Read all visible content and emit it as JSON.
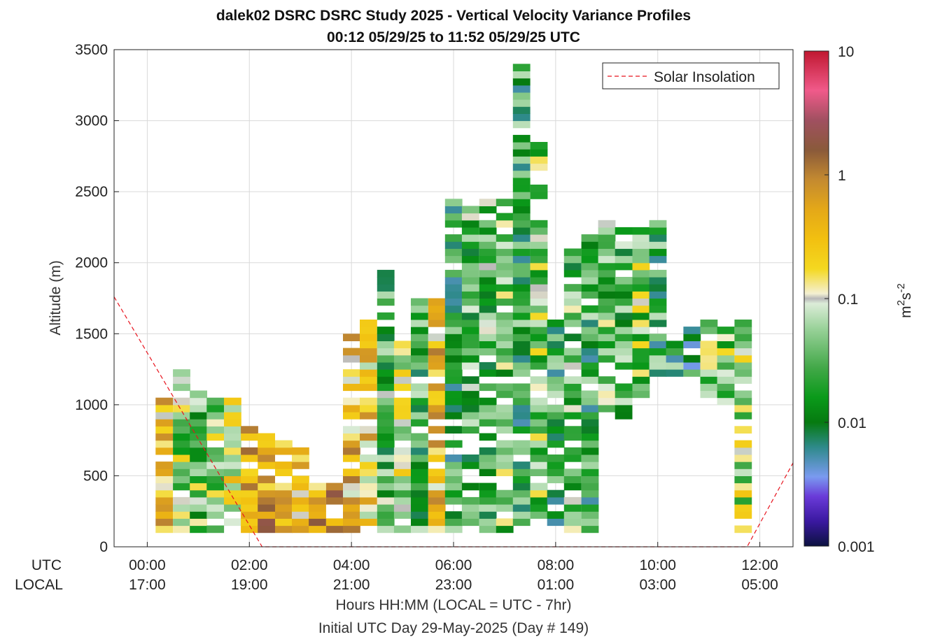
{
  "chart_data": {
    "type": "heatmap",
    "title": "dalek02 DSRC DSRC Study 2025 - Vertical Velocity Variance Profiles",
    "subtitle": "00:12 05/29/25 to 11:52 05/29/25  UTC",
    "ylabel": "Altitude (m)",
    "xlabel": "Hours HH:MM  (LOCAL = UTC - 7hr)",
    "xlabel2": "Initial UTC Day 29-May-2025 (Day # 149)",
    "row_label_utc": "UTC",
    "row_label_local": "LOCAL",
    "x_range_hours": [
      -0.65,
      12.65
    ],
    "ylim": [
      0,
      3500
    ],
    "x_ticks": [
      {
        "hour": 0,
        "utc": "00:00",
        "local": "17:00"
      },
      {
        "hour": 2,
        "utc": "02:00",
        "local": "19:00"
      },
      {
        "hour": 4,
        "utc": "04:00",
        "local": "21:00"
      },
      {
        "hour": 6,
        "utc": "06:00",
        "local": "23:00"
      },
      {
        "hour": 8,
        "utc": "08:00",
        "local": "01:00"
      },
      {
        "hour": 10,
        "utc": "10:00",
        "local": "03:00"
      },
      {
        "hour": 12,
        "utc": "12:00",
        "local": "05:00"
      }
    ],
    "y_ticks": [
      {
        "value": 0,
        "label": "0"
      },
      {
        "value": 500,
        "label": "500"
      },
      {
        "value": 1000,
        "label": "1000"
      },
      {
        "value": 1500,
        "label": "1500"
      },
      {
        "value": 2000,
        "label": "2000"
      },
      {
        "value": 2500,
        "label": "2500"
      },
      {
        "value": 3000,
        "label": "3000"
      },
      {
        "value": 3500,
        "label": "3500"
      }
    ],
    "grid": true,
    "legend": {
      "label": "Solar Insolation",
      "position": "top-right",
      "color": "#e8141e",
      "style": "dashed"
    },
    "colorbar": {
      "scale": "log",
      "range": [
        0.001,
        10
      ],
      "ticks": [
        {
          "value": 10,
          "label": "10"
        },
        {
          "value": 1,
          "label": "1"
        },
        {
          "value": 0.1,
          "label": "0.1"
        },
        {
          "value": 0.01,
          "label": "0.01"
        },
        {
          "value": 0.001,
          "label": "0.001"
        }
      ],
      "unit_base": "m",
      "unit_exp1": "2",
      "unit_mid": "s",
      "unit_exp2": "-2",
      "stops": [
        [
          0.0,
          "#0c1240"
        ],
        [
          0.05,
          "#3a18a0"
        ],
        [
          0.1,
          "#6a3ad8"
        ],
        [
          0.14,
          "#7a9af0"
        ],
        [
          0.2,
          "#2e8a8a"
        ],
        [
          0.25,
          "#067a10"
        ],
        [
          0.3,
          "#0a9a1a"
        ],
        [
          0.36,
          "#42a848"
        ],
        [
          0.44,
          "#9ad29a"
        ],
        [
          0.49,
          "#dcecd8"
        ],
        [
          0.5,
          "#b8b8b8"
        ],
        [
          0.51,
          "#f4f0d2"
        ],
        [
          0.56,
          "#f4d820"
        ],
        [
          0.62,
          "#f2c010"
        ],
        [
          0.68,
          "#e4a818"
        ],
        [
          0.74,
          "#c48a30"
        ],
        [
          0.8,
          "#8a5a3a"
        ],
        [
          0.86,
          "#a05060"
        ],
        [
          0.92,
          "#f05a8a"
        ],
        [
          1.0,
          "#c01830"
        ]
      ]
    },
    "solar_insolation_line": [
      {
        "hour": -0.65,
        "altitude": 1760
      },
      {
        "hour": 2.25,
        "altitude": 0
      },
      {
        "hour": 11.75,
        "altitude": 0
      },
      {
        "hour": 12.65,
        "altitude": 590
      }
    ],
    "bin_width_hours": 0.3333,
    "bin_height_m": 50,
    "cells": [
      {
        "hour": 0.33,
        "altitude_range": [
          100,
          1050
        ],
        "variance": 0.25
      },
      {
        "hour": 0.67,
        "altitude_range": [
          100,
          1250
        ],
        "variance": 0.06
      },
      {
        "hour": 1.0,
        "altitude_range": [
          100,
          1100
        ],
        "variance": 0.04
      },
      {
        "hour": 1.33,
        "altitude_range": [
          100,
          1050
        ],
        "variance": 0.05
      },
      {
        "hour": 1.67,
        "altitude_range": [
          100,
          1100
        ],
        "variance": 0.12
      },
      {
        "hour": 2.0,
        "altitude_range": [
          100,
          850
        ],
        "variance": 0.35
      },
      {
        "hour": 2.33,
        "altitude_range": [
          100,
          800
        ],
        "variance": 0.5
      },
      {
        "hour": 2.67,
        "altitude_range": [
          100,
          800
        ],
        "variance": 0.35
      },
      {
        "hour": 3.0,
        "altitude_range": [
          100,
          700
        ],
        "variance": 0.3
      },
      {
        "hour": 3.33,
        "altitude_range": [
          100,
          450
        ],
        "variance": 0.45
      },
      {
        "hour": 3.67,
        "altitude_range": [
          100,
          450
        ],
        "variance": 0.5
      },
      {
        "hour": 4.0,
        "altitude_range": [
          100,
          1500
        ],
        "variance": 0.3
      },
      {
        "hour": 4.33,
        "altitude_range": [
          100,
          1600
        ],
        "variance": 0.25
      },
      {
        "hour": 4.67,
        "altitude_range": [
          100,
          1950
        ],
        "variance": 0.03
      },
      {
        "hour": 5.0,
        "altitude_range": [
          100,
          1500
        ],
        "variance": 0.08
      },
      {
        "hour": 5.33,
        "altitude_range": [
          100,
          1750
        ],
        "variance": 0.02
      },
      {
        "hour": 5.67,
        "altitude_range": [
          100,
          1750
        ],
        "variance": 0.3
      },
      {
        "hour": 6.0,
        "altitude_range": [
          100,
          2450
        ],
        "variance": 0.02
      },
      {
        "hour": 6.33,
        "altitude_range": [
          150,
          2400
        ],
        "variance": 0.03
      },
      {
        "hour": 6.67,
        "altitude_range": [
          100,
          2450
        ],
        "variance": 0.03
      },
      {
        "hour": 7.0,
        "altitude_range": [
          100,
          2450
        ],
        "variance": 0.04
      },
      {
        "hour": 7.33,
        "altitude_range": [
          100,
          3500
        ],
        "variance": 0.02
      },
      {
        "hour": 7.67,
        "altitude_range": [
          100,
          2900
        ],
        "variance": 0.05
      },
      {
        "hour": 8.0,
        "altitude_range": [
          150,
          1600
        ],
        "variance": 0.02
      },
      {
        "hour": 8.33,
        "altitude_range": [
          100,
          2100
        ],
        "variance": 0.03
      },
      {
        "hour": 8.67,
        "altitude_range": [
          100,
          2200
        ],
        "variance": 0.02
      },
      {
        "hour": 9.0,
        "altitude_range": [
          950,
          2300
        ],
        "variance": 0.04
      },
      {
        "hour": 9.33,
        "altitude_range": [
          900,
          2250
        ],
        "variance": 0.03
      },
      {
        "hour": 9.67,
        "altitude_range": [
          1050,
          2250
        ],
        "variance": 0.05
      },
      {
        "hour": 10.0,
        "altitude_range": [
          1200,
          2300
        ],
        "variance": 0.02
      },
      {
        "hour": 10.33,
        "altitude_range": [
          1200,
          1500
        ],
        "variance": 0.02
      },
      {
        "hour": 10.67,
        "altitude_range": [
          1150,
          1550
        ],
        "variance": 0.015
      },
      {
        "hour": 11.0,
        "altitude_range": [
          1050,
          1600
        ],
        "variance": 0.04
      },
      {
        "hour": 11.33,
        "altitude_range": [
          1000,
          1600
        ],
        "variance": 0.05
      },
      {
        "hour": 11.67,
        "altitude_range": [
          100,
          1600
        ],
        "variance": 0.08
      }
    ]
  }
}
